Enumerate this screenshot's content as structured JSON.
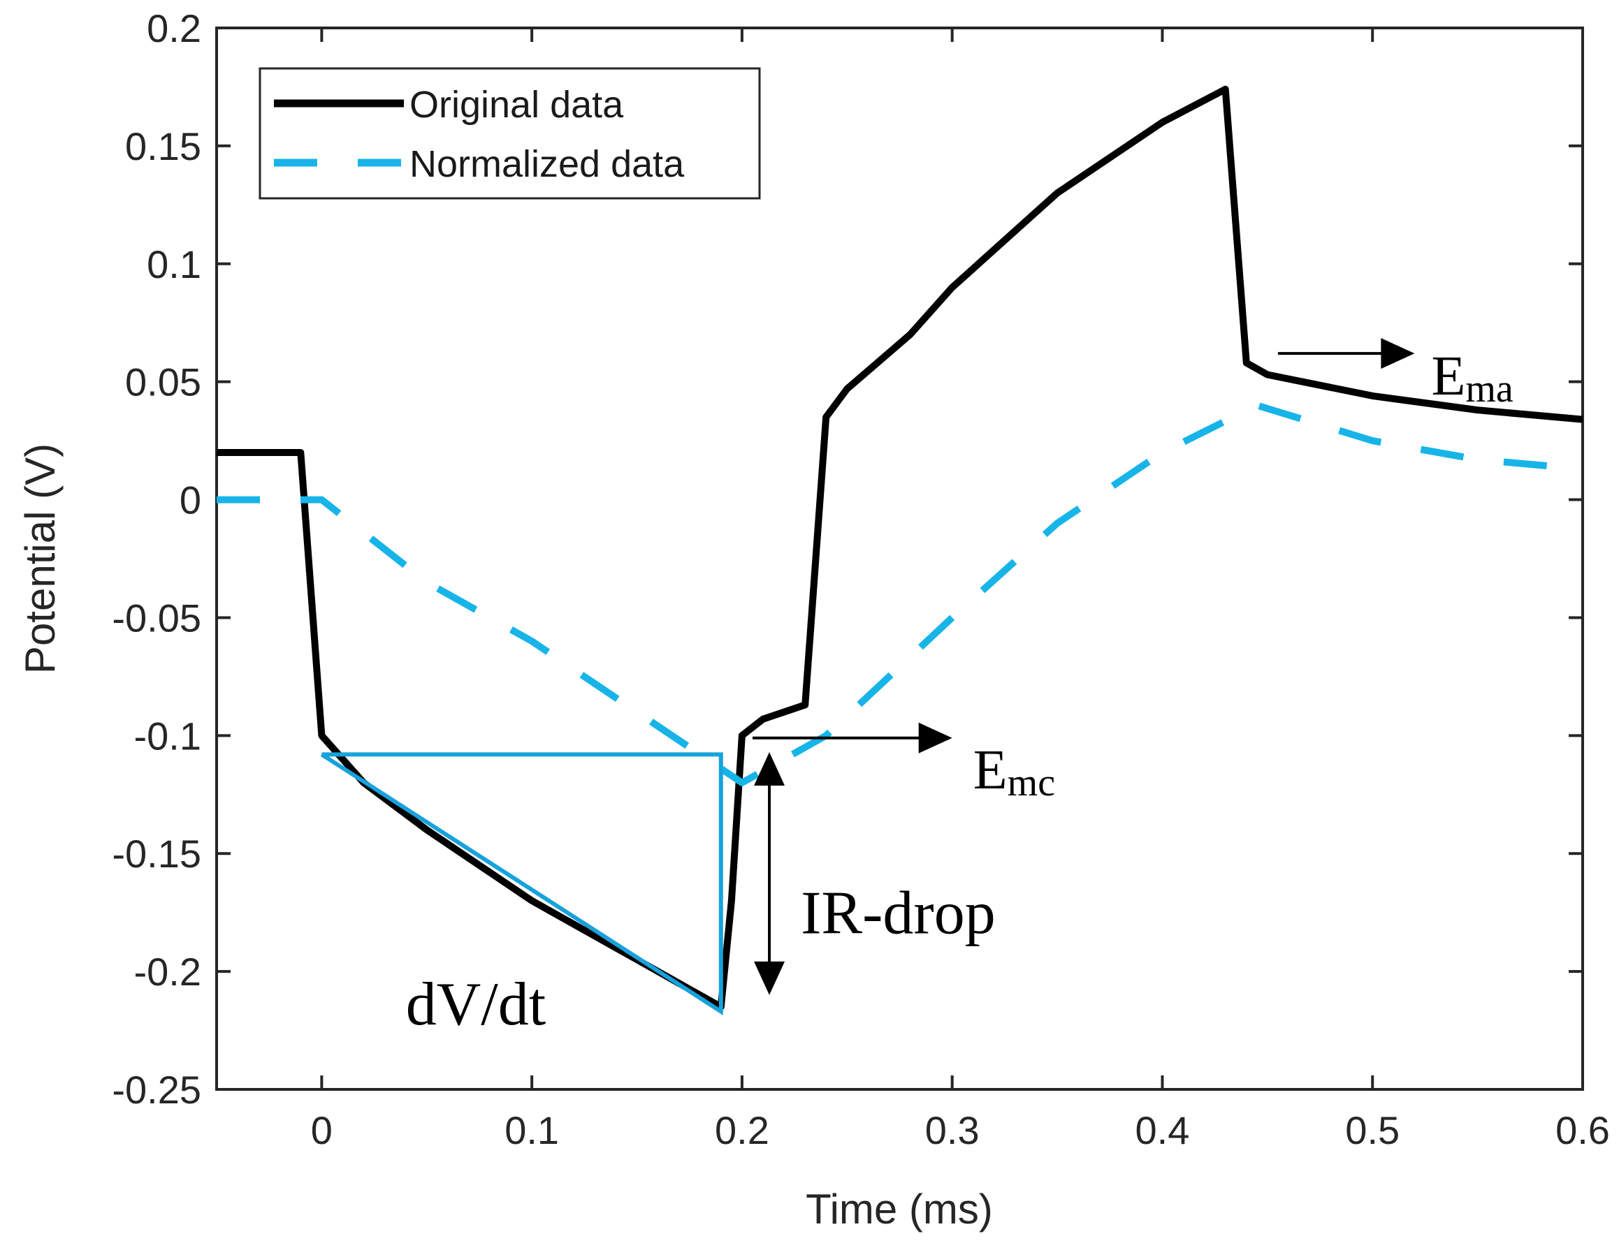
{
  "chart_data": {
    "type": "line",
    "title": "",
    "xlabel": "Time (ms)",
    "ylabel": "Potential (V)",
    "xlim": [
      -0.05,
      0.6
    ],
    "ylim": [
      -0.25,
      0.2
    ],
    "xticks": [
      0,
      0.1,
      0.2,
      0.3,
      0.4,
      0.5,
      0.6
    ],
    "xtick_labels": [
      "0",
      "0.1",
      "0.2",
      "0.3",
      "0.4",
      "0.5",
      "0.6"
    ],
    "yticks": [
      0.2,
      0.15,
      0.1,
      0.05,
      0,
      -0.05,
      -0.1,
      -0.15,
      -0.2,
      -0.25
    ],
    "ytick_labels": [
      "0.2",
      "0.15",
      "0.1",
      "0.05",
      "0",
      "-0.05",
      "-0.1",
      "-0.15",
      "-0.2",
      "-0.25"
    ],
    "grid": false,
    "legend_position": "top-left",
    "series": [
      {
        "name": "Original data",
        "style": "solid",
        "color": "#000000",
        "x": [
          -0.05,
          -0.01,
          0.0,
          0.02,
          0.05,
          0.1,
          0.15,
          0.19,
          0.195,
          0.2,
          0.21,
          0.23,
          0.24,
          0.25,
          0.28,
          0.3,
          0.35,
          0.4,
          0.43,
          0.44,
          0.45,
          0.5,
          0.55,
          0.6
        ],
        "y": [
          0.02,
          0.02,
          -0.1,
          -0.12,
          -0.14,
          -0.17,
          -0.195,
          -0.215,
          -0.17,
          -0.1,
          -0.093,
          -0.087,
          0.035,
          0.047,
          0.07,
          0.09,
          0.13,
          0.16,
          0.174,
          0.058,
          0.053,
          0.044,
          0.038,
          0.034
        ]
      },
      {
        "name": "Normalized data",
        "style": "dashed",
        "color": "#17b4e8",
        "x": [
          -0.05,
          -0.02,
          0.0,
          0.05,
          0.1,
          0.15,
          0.2,
          0.24,
          0.3,
          0.35,
          0.4,
          0.445,
          0.5,
          0.55,
          0.6
        ],
        "y": [
          0.0,
          0.0,
          0.0,
          -0.035,
          -0.06,
          -0.09,
          -0.12,
          -0.1,
          -0.05,
          -0.01,
          0.02,
          0.04,
          0.025,
          0.017,
          0.013
        ]
      }
    ],
    "slope_triangle": {
      "color": "#17a2db",
      "x": [
        0.0,
        0.19,
        0.19,
        0.0
      ],
      "y": [
        -0.108,
        -0.108,
        -0.217,
        -0.108
      ]
    },
    "annotations": [
      {
        "id": "ema",
        "text": "E",
        "sub": "ma",
        "arrow_from": [
          0.455,
          0.062
        ],
        "arrow_to": [
          0.52,
          0.062
        ],
        "label_at": [
          0.528,
          0.052
        ]
      },
      {
        "id": "emc",
        "text": "E",
        "sub": "mc",
        "arrow_from": [
          0.205,
          -0.101
        ],
        "arrow_to": [
          0.3,
          -0.101
        ],
        "label_at": [
          0.31,
          -0.115
        ]
      },
      {
        "id": "ir",
        "text": "IR-drop",
        "sub": "",
        "arrow_from": [
          0.213,
          -0.107
        ],
        "arrow_to": [
          0.213,
          -0.21
        ],
        "label_at": [
          0.228,
          -0.175
        ]
      },
      {
        "id": "dvdt",
        "text": "dV/dt",
        "sub": "",
        "label_at": [
          0.04,
          -0.215
        ]
      }
    ],
    "legend": {
      "items": [
        "Original data",
        "Normalized data"
      ]
    }
  }
}
